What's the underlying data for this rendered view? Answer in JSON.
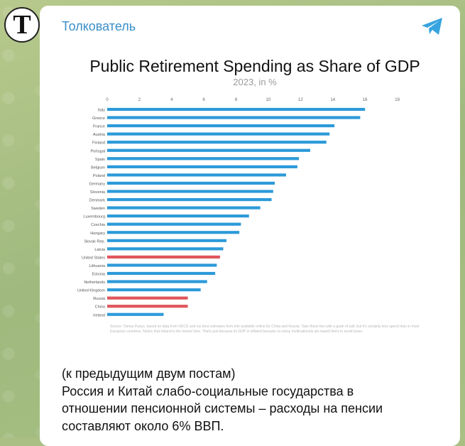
{
  "channel": {
    "name": "Толкователь",
    "avatar_letter": "T"
  },
  "colors": {
    "bar_default": "#2c9ad9",
    "bar_highlight": "#e0555d",
    "link": "#3a8fc9"
  },
  "chart_data": {
    "type": "bar",
    "orientation": "horizontal",
    "title": "Public Retirement Spending as Share of GDP",
    "subtitle": "2023, in %",
    "xlim": [
      0,
      18
    ],
    "x_ticks": [
      "0",
      "2",
      "4",
      "6",
      "8",
      "10",
      "12",
      "14",
      "16",
      "18"
    ],
    "grid": true,
    "categories": [
      "Italy",
      "Greece",
      "France",
      "Austria",
      "Finland",
      "Portugal",
      "Spain",
      "Belgium",
      "Poland",
      "Germany",
      "Slovenia",
      "Denmark",
      "Sweden",
      "Luxembourg",
      "Czechia",
      "Hungary",
      "Slovak Rep.",
      "Latvia",
      "United States",
      "Lithuania",
      "Estonia",
      "Netherlands",
      "United Kingdom",
      "Russia",
      "China",
      "Ireland"
    ],
    "values": [
      16.0,
      15.7,
      14.1,
      13.8,
      13.6,
      12.6,
      11.9,
      11.8,
      11.1,
      10.4,
      10.3,
      10.2,
      9.5,
      8.8,
      8.3,
      8.2,
      7.4,
      7.2,
      7.0,
      6.8,
      6.7,
      6.2,
      5.8,
      5.0,
      5.0,
      3.5
    ],
    "highlighted": [
      "United States",
      "Russia",
      "China"
    ],
    "source_note": "Source: Tomas Pueyo, based on data from OECD and my best estimates from info available online for China and Russia. Take those two with a grain of salt, but it's certainly less spend than in most European countries. Notice that Ireland is the lowest here. That's just because its GDP is inflated because so many multinationals are based there to avoid taxes."
  },
  "message": {
    "lines": [
      "(к предыдущим двум постам)",
      "Россия и Китай слабо-социальные государства в",
      "отношении пенсионной системы – расходы на пенсии",
      "составляют около 6% ВВП."
    ]
  }
}
